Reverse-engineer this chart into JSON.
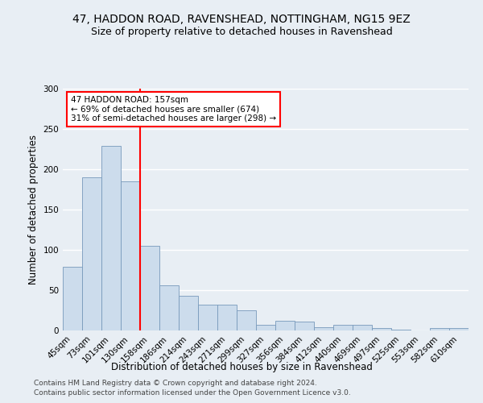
{
  "title1": "47, HADDON ROAD, RAVENSHEAD, NOTTINGHAM, NG15 9EZ",
  "title2": "Size of property relative to detached houses in Ravenshead",
  "xlabel": "Distribution of detached houses by size in Ravenshead",
  "ylabel": "Number of detached properties",
  "footer1": "Contains HM Land Registry data © Crown copyright and database right 2024.",
  "footer2": "Contains public sector information licensed under the Open Government Licence v3.0.",
  "categories": [
    "45sqm",
    "73sqm",
    "101sqm",
    "130sqm",
    "158sqm",
    "186sqm",
    "214sqm",
    "243sqm",
    "271sqm",
    "299sqm",
    "327sqm",
    "356sqm",
    "384sqm",
    "412sqm",
    "440sqm",
    "469sqm",
    "497sqm",
    "525sqm",
    "553sqm",
    "582sqm",
    "610sqm"
  ],
  "values": [
    79,
    190,
    229,
    185,
    105,
    56,
    43,
    32,
    32,
    25,
    7,
    12,
    11,
    4,
    7,
    7,
    3,
    1,
    0,
    3,
    3
  ],
  "bar_color": "#ccdcec",
  "bar_edge_color": "#7799bb",
  "reference_line_label": "47 HADDON ROAD: 157sqm",
  "annotation_line1": "← 69% of detached houses are smaller (674)",
  "annotation_line2": "31% of semi-detached houses are larger (298) →",
  "annotation_box_color": "white",
  "annotation_border_color": "red",
  "vline_color": "red",
  "ylim": [
    0,
    300
  ],
  "yticks": [
    0,
    50,
    100,
    150,
    200,
    250,
    300
  ],
  "bg_color": "#e8eef4",
  "plot_bg_color": "#e8eef4",
  "grid_color": "#ffffff",
  "title_fontsize": 10,
  "subtitle_fontsize": 9,
  "axis_label_fontsize": 8.5,
  "tick_fontsize": 7.5,
  "footer_fontsize": 6.5,
  "annotation_fontsize": 7.5,
  "vline_x_index": 3.5
}
